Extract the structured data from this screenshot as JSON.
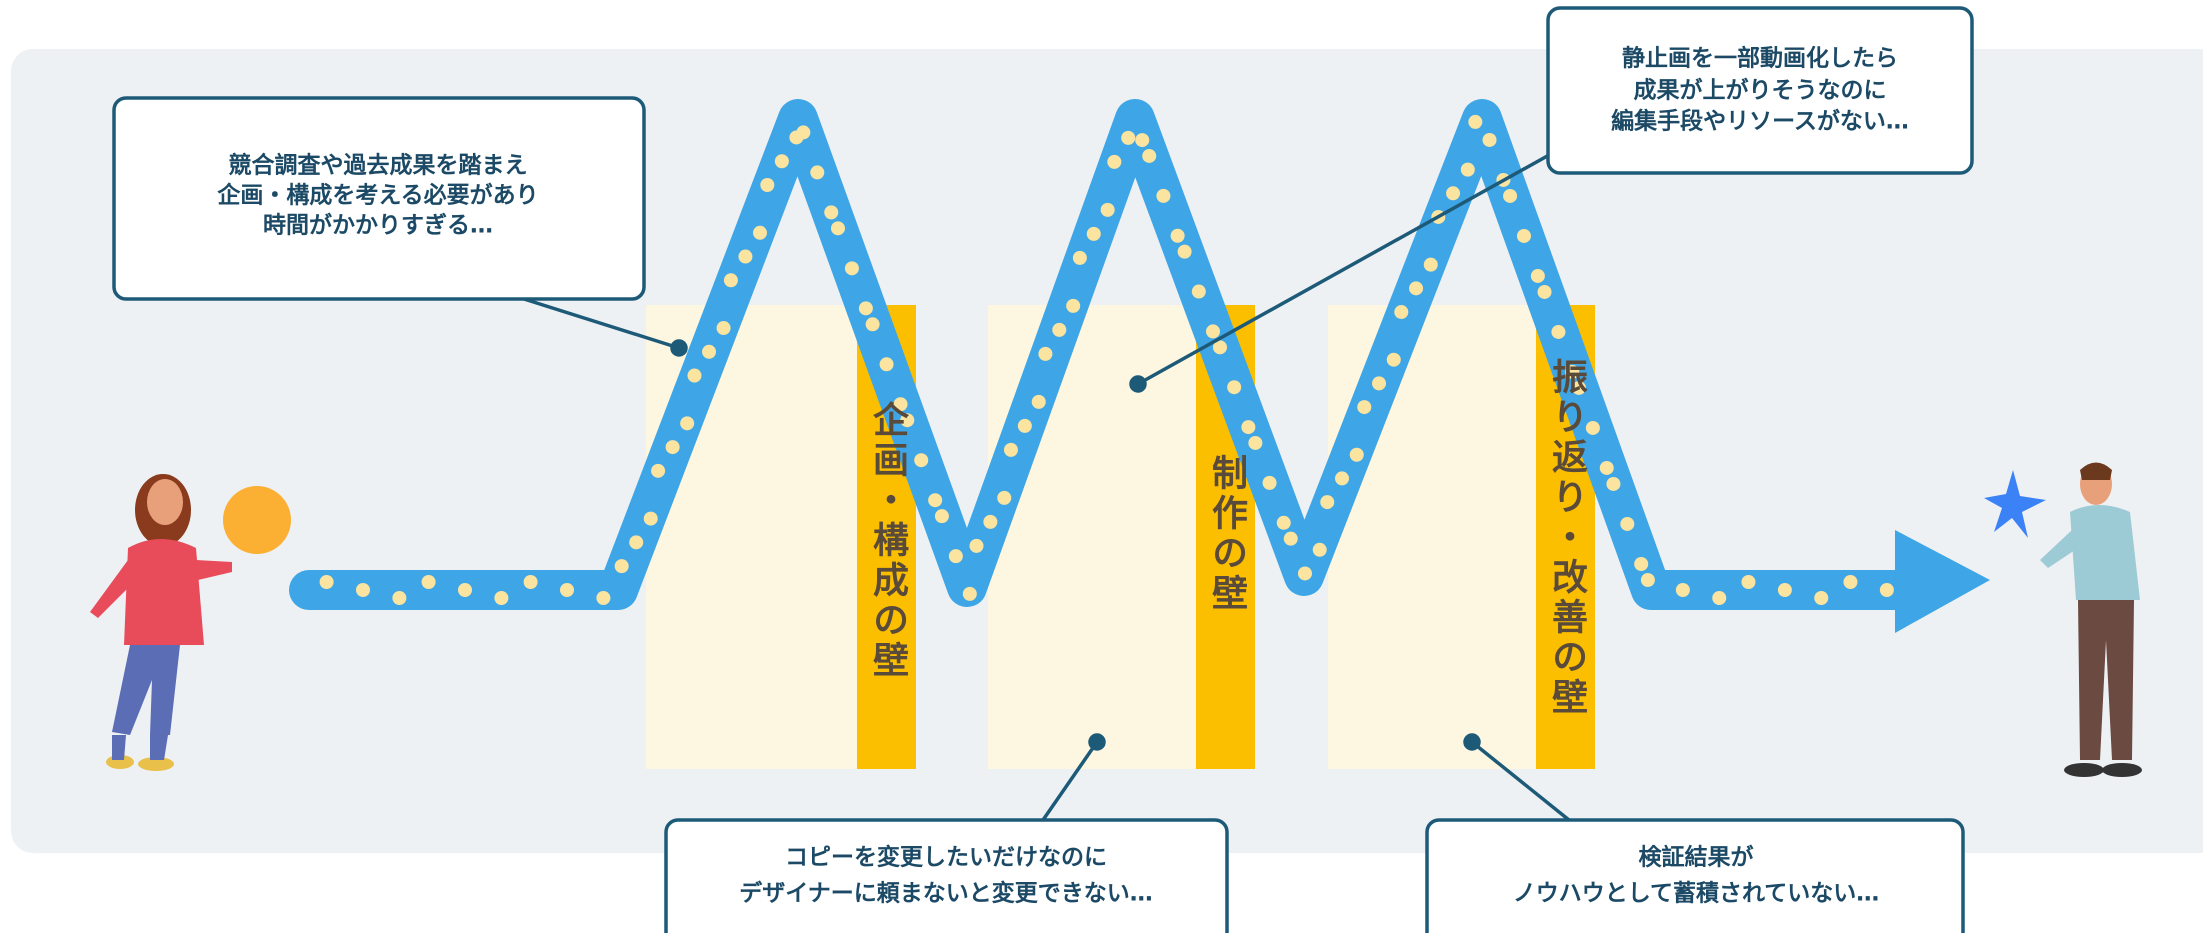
{
  "callouts": [
    {
      "lines": [
        "競合調査や過去成果を踏まえ",
        "企画・構成を考える必要があり",
        "時間がかかりすぎる…"
      ]
    },
    {
      "lines": [
        "静止画を一部動画化したら",
        "成果が上がりそうなのに",
        "編集手段やリソースがない…"
      ]
    },
    {
      "lines": [
        "コピーを変更したいだけなのに",
        "デザイナーに頼まないと変更できない…"
      ]
    },
    {
      "lines": [
        "検証結果が",
        "ノウハウとして蓄積されていない…"
      ]
    }
  ],
  "walls": [
    {
      "label": "企画・構成の壁"
    },
    {
      "label": "制作の壁"
    },
    {
      "label": "振り返り・改善の壁"
    }
  ]
}
